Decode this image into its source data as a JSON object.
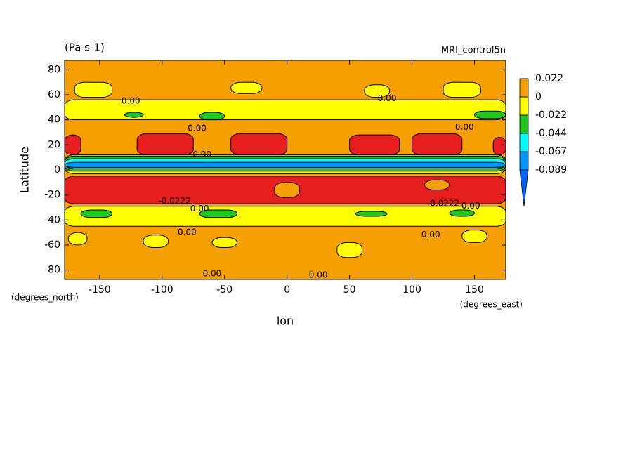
{
  "chart_data": {
    "type": "contour",
    "title": "(Pa s-1)",
    "subtitle": "MRI_control5n",
    "x_label": "lon",
    "y_label": "Latitude",
    "x_unit": "(degrees_east)",
    "y_unit": "(degrees_north)",
    "xlim": [
      -178,
      175
    ],
    "ylim": [
      -87.5,
      87.5
    ],
    "xticks": [
      -150,
      -100,
      -50,
      0,
      50,
      100,
      150
    ],
    "yticks": [
      -80,
      -60,
      -40,
      -20,
      0,
      20,
      40,
      60,
      80
    ],
    "levels": [
      -0.089,
      -0.067,
      -0.044,
      -0.022,
      0,
      0.022
    ],
    "colors": [
      "#0064ff",
      "#0096ff",
      "#00ffff",
      "#1ec81e",
      "#ffff00",
      "#f5a000",
      "#e61e1e"
    ],
    "regions": [
      {
        "lon": [
          -178,
          175
        ],
        "lat": [
          -87.5,
          87.5
        ],
        "value": 0.01
      },
      {
        "lon": [
          -178,
          175
        ],
        "lat": [
          40,
          56
        ],
        "value": -0.01
      },
      {
        "lon": [
          -170,
          -140
        ],
        "lat": [
          58,
          70
        ],
        "value": -0.01
      },
      {
        "lon": [
          -45,
          -20
        ],
        "lat": [
          61,
          70
        ],
        "value": -0.01
      },
      {
        "lon": [
          62,
          82
        ],
        "lat": [
          58,
          68
        ],
        "value": -0.01
      },
      {
        "lon": [
          125,
          155
        ],
        "lat": [
          58,
          70
        ],
        "value": -0.01
      },
      {
        "lon": [
          -130,
          -115
        ],
        "lat": [
          42,
          46
        ],
        "value": -0.03
      },
      {
        "lon": [
          -70,
          -50
        ],
        "lat": [
          40,
          46
        ],
        "value": -0.03
      },
      {
        "lon": [
          150,
          175
        ],
        "lat": [
          41,
          47
        ],
        "value": -0.03
      },
      {
        "lon": [
          -178,
          -165
        ],
        "lat": [
          12,
          28
        ],
        "value": 0.03
      },
      {
        "lon": [
          -120,
          -75
        ],
        "lat": [
          12,
          29
        ],
        "value": 0.03
      },
      {
        "lon": [
          -45,
          0
        ],
        "lat": [
          12,
          29
        ],
        "value": 0.03
      },
      {
        "lon": [
          50,
          90
        ],
        "lat": [
          12,
          28
        ],
        "value": 0.03
      },
      {
        "lon": [
          100,
          140
        ],
        "lat": [
          12,
          29
        ],
        "value": 0.03
      },
      {
        "lon": [
          165,
          175
        ],
        "lat": [
          12,
          26
        ],
        "value": 0.03
      },
      {
        "lon": [
          -178,
          175
        ],
        "lat": [
          -3,
          12
        ],
        "value": -0.01
      },
      {
        "lon": [
          -178,
          175
        ],
        "lat": [
          -1,
          11
        ],
        "value": -0.03
      },
      {
        "lon": [
          -178,
          175
        ],
        "lat": [
          1,
          9
        ],
        "value": -0.05
      },
      {
        "lon": [
          -178,
          175
        ],
        "lat": [
          2,
          6
        ],
        "value": -0.08
      },
      {
        "lon": [
          -178,
          175
        ],
        "lat": [
          -27,
          -5
        ],
        "value": 0.03
      },
      {
        "lon": [
          -10,
          10
        ],
        "lat": [
          -22,
          -10
        ],
        "value": 0.01
      },
      {
        "lon": [
          110,
          130
        ],
        "lat": [
          -16,
          -8
        ],
        "value": 0.01
      },
      {
        "lon": [
          -178,
          175
        ],
        "lat": [
          -45,
          -29
        ],
        "value": -0.01
      },
      {
        "lon": [
          -165,
          -140
        ],
        "lat": [
          -38,
          -32
        ],
        "value": -0.03
      },
      {
        "lon": [
          -70,
          -40
        ],
        "lat": [
          -38,
          -32
        ],
        "value": -0.03
      },
      {
        "lon": [
          55,
          80
        ],
        "lat": [
          -37,
          -33
        ],
        "value": -0.03
      },
      {
        "lon": [
          130,
          150
        ],
        "lat": [
          -37,
          -32
        ],
        "value": -0.03
      },
      {
        "lon": [
          -175,
          -160
        ],
        "lat": [
          -60,
          -50
        ],
        "value": -0.01
      },
      {
        "lon": [
          -115,
          -95
        ],
        "lat": [
          -62,
          -52
        ],
        "value": -0.01
      },
      {
        "lon": [
          -60,
          -40
        ],
        "lat": [
          -62,
          -54
        ],
        "value": -0.01
      },
      {
        "lon": [
          40,
          60
        ],
        "lat": [
          -70,
          -58
        ],
        "value": -0.01
      },
      {
        "lon": [
          140,
          160
        ],
        "lat": [
          -58,
          -48
        ],
        "value": -0.01
      }
    ],
    "contour_labels": [
      {
        "text": "0.00",
        "lon": -125,
        "lat": 55
      },
      {
        "text": "0.00",
        "lon": -72,
        "lat": 33
      },
      {
        "text": "0.00",
        "lon": 80,
        "lat": 57
      },
      {
        "text": "0.00",
        "lon": 142,
        "lat": 34
      },
      {
        "text": "0.00",
        "lon": -68,
        "lat": 12
      },
      {
        "text": "-0.0222",
        "lon": -90,
        "lat": -25
      },
      {
        "text": "0.00",
        "lon": -70,
        "lat": -31
      },
      {
        "text": "-0.0222",
        "lon": 125,
        "lat": -27
      },
      {
        "text": "0.00",
        "lon": 147,
        "lat": -29
      },
      {
        "text": "0.00",
        "lon": -80,
        "lat": -50
      },
      {
        "text": "0.00",
        "lon": 115,
        "lat": -52
      },
      {
        "text": "0.00",
        "lon": -60,
        "lat": -83
      },
      {
        "text": "0.00",
        "lon": 25,
        "lat": -84
      }
    ]
  }
}
